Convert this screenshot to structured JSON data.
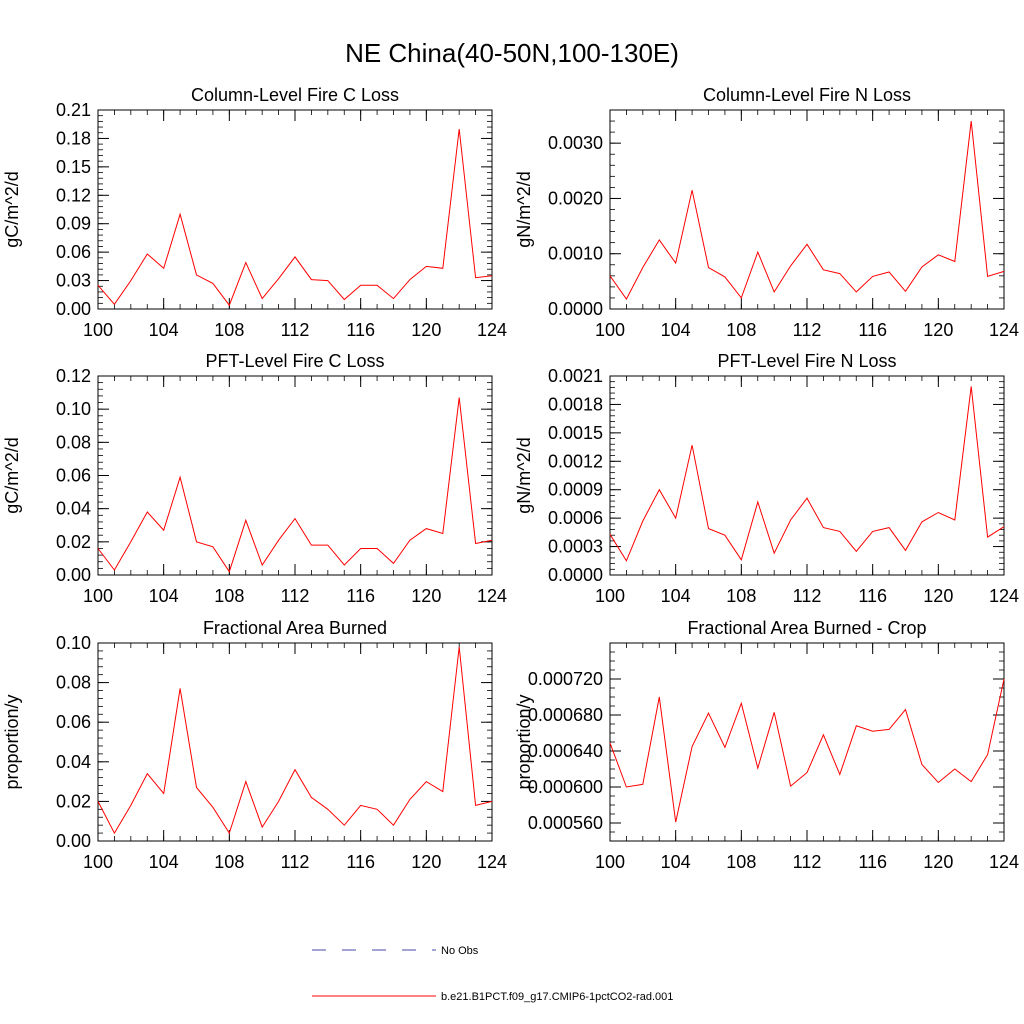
{
  "figure": {
    "title": "NE China(40-50N,100-130E)"
  },
  "legend": {
    "entries": [
      {
        "label": "No Obs",
        "color": "#4a4aa8",
        "dashed": true
      },
      {
        "label": "b.e21.B1PCT.f09_g17.CMIP6-1pctCO2-rad.001",
        "color": "#ff0000",
        "dashed": false
      }
    ]
  },
  "chart_data": [
    {
      "type": "line",
      "title": "Column-Level Fire C Loss",
      "ylabel": "gC/m^2/d",
      "xlim": [
        100,
        124
      ],
      "ylim": [
        0,
        0.21
      ],
      "xticks": [
        "100",
        "104",
        "108",
        "112",
        "116",
        "120",
        "124"
      ],
      "yticks": [
        "0.00",
        "0.03",
        "0.06",
        "0.09",
        "0.12",
        "0.15",
        "0.18",
        "0.21"
      ],
      "ytick_values": [
        0,
        0.03,
        0.06,
        0.09,
        0.12,
        0.15,
        0.18,
        0.21
      ],
      "yminor_step": 0.006,
      "x": [
        100,
        101,
        102,
        103,
        104,
        105,
        106,
        107,
        108,
        109,
        110,
        111,
        112,
        113,
        114,
        115,
        116,
        117,
        118,
        119,
        120,
        121,
        122,
        123,
        124
      ],
      "series": [
        {
          "name": "b.e21.B1PCT.f09_g17.CMIP6-1pctCO2-rad.001",
          "color": "#ff0000",
          "values": [
            0.025,
            0.005,
            0.03,
            0.058,
            0.043,
            0.1,
            0.036,
            0.027,
            0.004,
            0.049,
            0.011,
            0.032,
            0.055,
            0.031,
            0.03,
            0.01,
            0.025,
            0.025,
            0.011,
            0.031,
            0.045,
            0.043,
            0.19,
            0.033,
            0.035
          ]
        }
      ]
    },
    {
      "type": "line",
      "title": "Column-Level Fire N Loss",
      "ylabel": "gN/m^2/d",
      "xlim": [
        100,
        124
      ],
      "ylim": [
        0,
        0.0036
      ],
      "xticks": [
        "100",
        "104",
        "108",
        "112",
        "116",
        "120",
        "124"
      ],
      "yticks": [
        "0.0000",
        "0.0010",
        "0.0020",
        "0.0030"
      ],
      "ytick_values": [
        0,
        0.001,
        0.002,
        0.003
      ],
      "yminor_step": 0.0002,
      "x": [
        100,
        101,
        102,
        103,
        104,
        105,
        106,
        107,
        108,
        109,
        110,
        111,
        112,
        113,
        114,
        115,
        116,
        117,
        118,
        119,
        120,
        121,
        122,
        123,
        124
      ],
      "series": [
        {
          "name": "b.e21.B1PCT.f09_g17.CMIP6-1pctCO2-rad.001",
          "color": "#ff0000",
          "values": [
            0.0006,
            0.00018,
            0.00075,
            0.00125,
            0.00083,
            0.00215,
            0.00075,
            0.00058,
            0.0002,
            0.00103,
            0.00031,
            0.00078,
            0.00117,
            0.00071,
            0.00064,
            0.00031,
            0.00059,
            0.00067,
            0.00032,
            0.00076,
            0.00098,
            0.00086,
            0.0034,
            0.00059,
            0.00068
          ]
        }
      ]
    },
    {
      "type": "line",
      "title": "PFT-Level Fire C Loss",
      "ylabel": "gC/m^2/d",
      "xlim": [
        100,
        124
      ],
      "ylim": [
        0,
        0.12
      ],
      "xticks": [
        "100",
        "104",
        "108",
        "112",
        "116",
        "120",
        "124"
      ],
      "yticks": [
        "0.00",
        "0.02",
        "0.04",
        "0.06",
        "0.08",
        "0.10",
        "0.12"
      ],
      "ytick_values": [
        0,
        0.02,
        0.04,
        0.06,
        0.08,
        0.1,
        0.12
      ],
      "yminor_step": 0.004,
      "x": [
        100,
        101,
        102,
        103,
        104,
        105,
        106,
        107,
        108,
        109,
        110,
        111,
        112,
        113,
        114,
        115,
        116,
        117,
        118,
        119,
        120,
        121,
        122,
        123,
        124
      ],
      "series": [
        {
          "name": "b.e21.B1PCT.f09_g17.CMIP6-1pctCO2-rad.001",
          "color": "#ff0000",
          "values": [
            0.016,
            0.003,
            0.02,
            0.038,
            0.027,
            0.059,
            0.02,
            0.017,
            0.002,
            0.033,
            0.006,
            0.021,
            0.034,
            0.018,
            0.018,
            0.006,
            0.016,
            0.016,
            0.007,
            0.021,
            0.028,
            0.025,
            0.107,
            0.019,
            0.021
          ]
        }
      ]
    },
    {
      "type": "line",
      "title": "PFT-Level Fire N Loss",
      "ylabel": "gN/m^2/d",
      "xlim": [
        100,
        124
      ],
      "ylim": [
        0,
        0.0021
      ],
      "xticks": [
        "100",
        "104",
        "108",
        "112",
        "116",
        "120",
        "124"
      ],
      "yticks": [
        "0.0000",
        "0.0003",
        "0.0006",
        "0.0009",
        "0.0012",
        "0.0015",
        "0.0018",
        "0.0021"
      ],
      "ytick_values": [
        0,
        0.0003,
        0.0006,
        0.0009,
        0.0012,
        0.0015,
        0.0018,
        0.0021
      ],
      "yminor_step": 6e-05,
      "x": [
        100,
        101,
        102,
        103,
        104,
        105,
        106,
        107,
        108,
        109,
        110,
        111,
        112,
        113,
        114,
        115,
        116,
        117,
        118,
        119,
        120,
        121,
        122,
        123,
        124
      ],
      "series": [
        {
          "name": "b.e21.B1PCT.f09_g17.CMIP6-1pctCO2-rad.001",
          "color": "#ff0000",
          "values": [
            0.00043,
            0.00015,
            0.00057,
            0.0009,
            0.0006,
            0.00137,
            0.00049,
            0.00042,
            0.00016,
            0.00077,
            0.00023,
            0.00058,
            0.00081,
            0.0005,
            0.00046,
            0.00025,
            0.00046,
            0.0005,
            0.00026,
            0.00056,
            0.00066,
            0.00058,
            0.00199,
            0.0004,
            0.00051
          ]
        }
      ]
    },
    {
      "type": "line",
      "title": "Fractional Area Burned",
      "ylabel": "proportion/y",
      "xlim": [
        100,
        124
      ],
      "ylim": [
        0,
        0.1
      ],
      "xticks": [
        "100",
        "104",
        "108",
        "112",
        "116",
        "120",
        "124"
      ],
      "yticks": [
        "0.00",
        "0.02",
        "0.04",
        "0.06",
        "0.08",
        "0.10"
      ],
      "ytick_values": [
        0,
        0.02,
        0.04,
        0.06,
        0.08,
        0.1
      ],
      "yminor_step": 0.004,
      "x": [
        100,
        101,
        102,
        103,
        104,
        105,
        106,
        107,
        108,
        109,
        110,
        111,
        112,
        113,
        114,
        115,
        116,
        117,
        118,
        119,
        120,
        121,
        122,
        123,
        124
      ],
      "series": [
        {
          "name": "b.e21.B1PCT.f09_g17.CMIP6-1pctCO2-rad.001",
          "color": "#ff0000",
          "values": [
            0.02,
            0.004,
            0.018,
            0.034,
            0.024,
            0.077,
            0.027,
            0.017,
            0.004,
            0.03,
            0.007,
            0.02,
            0.036,
            0.022,
            0.016,
            0.008,
            0.018,
            0.016,
            0.008,
            0.021,
            0.03,
            0.025,
            0.098,
            0.018,
            0.02
          ]
        }
      ]
    },
    {
      "type": "line",
      "title": "Fractional Area Burned - Crop",
      "ylabel": "proportion/y",
      "xlim": [
        100,
        124
      ],
      "ylim": [
        0.00054,
        0.00076
      ],
      "xticks": [
        "100",
        "104",
        "108",
        "112",
        "116",
        "120",
        "124"
      ],
      "yticks": [
        "0.000560",
        "0.000600",
        "0.000640",
        "0.000680",
        "0.000720"
      ],
      "ytick_values": [
        0.00056,
        0.0006,
        0.00064,
        0.00068,
        0.00072
      ],
      "yminor_step": 1e-05,
      "x": [
        100,
        101,
        102,
        103,
        104,
        105,
        106,
        107,
        108,
        109,
        110,
        111,
        112,
        113,
        114,
        115,
        116,
        117,
        118,
        119,
        120,
        121,
        122,
        123,
        124
      ],
      "series": [
        {
          "name": "b.e21.B1PCT.f09_g17.CMIP6-1pctCO2-rad.001",
          "color": "#ff0000",
          "values": [
            0.000649,
            0.0006,
            0.000603,
            0.0007,
            0.000561,
            0.000645,
            0.000682,
            0.000644,
            0.000693,
            0.000621,
            0.000683,
            0.000601,
            0.000616,
            0.000658,
            0.000614,
            0.000668,
            0.000662,
            0.000664,
            0.000686,
            0.000625,
            0.000605,
            0.00062,
            0.000606,
            0.000636,
            0.00072
          ]
        }
      ]
    }
  ]
}
